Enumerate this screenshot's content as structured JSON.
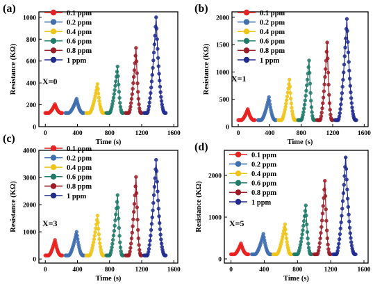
{
  "colors": {
    "0.1 ppm": "#e8221f",
    "0.2 ppm": "#3f6fb0",
    "0.4 ppm": "#f0c419",
    "0.6 ppm": "#1f7a6a",
    "0.8 ppm": "#9b1c27",
    "1 ppm": "#1f2b8f"
  },
  "chart_data": [
    {
      "panel": "(a)",
      "type": "line",
      "annotation": "X=0",
      "xlabel": "Time (s)",
      "ylabel": "Resistance (KΩ)",
      "xlim": [
        -80,
        1650
      ],
      "ylim": [
        0,
        1050
      ],
      "xticks": [
        0,
        400,
        800,
        1200,
        1600
      ],
      "yticks": [
        0,
        200,
        400,
        600,
        800,
        1000
      ],
      "legend": [
        "0.1 ppm",
        "0.2 ppm",
        "0.4 ppm",
        "0.6 ppm",
        "0.8 ppm",
        "1 ppm"
      ],
      "baseline": 125,
      "pulses": [
        {
          "name": "0.1 ppm",
          "start": 0,
          "rise": 120,
          "end": 200,
          "peak": 205
        },
        {
          "name": "0.2 ppm",
          "start": 250,
          "rise": 390,
          "end": 470,
          "peak": 255
        },
        {
          "name": "0.4 ppm",
          "start": 510,
          "rise": 650,
          "end": 720,
          "peak": 390
        },
        {
          "name": "0.6 ppm",
          "start": 760,
          "rise": 900,
          "end": 960,
          "peak": 550
        },
        {
          "name": "0.8 ppm",
          "start": 1000,
          "rise": 1130,
          "end": 1190,
          "peak": 720
        },
        {
          "name": "1 ppm",
          "start": 1230,
          "rise": 1380,
          "end": 1490,
          "peak": 1000
        }
      ]
    },
    {
      "panel": "(b)",
      "type": "line",
      "annotation": "X=1",
      "xlabel": "Time (s)",
      "ylabel": "Resistance (KΩ)",
      "xlim": [
        -80,
        1650
      ],
      "ylim": [
        0,
        2100
      ],
      "xticks": [
        0,
        400,
        800,
        1200,
        1600
      ],
      "yticks": [
        0,
        500,
        1000,
        1500,
        2000
      ],
      "legend": [
        "0.1 ppm",
        "0.2 ppm",
        "0.4 ppm",
        "0.6 ppm",
        "0.8 ppm",
        "1 ppm"
      ],
      "baseline": 120,
      "pulses": [
        {
          "name": "0.1 ppm",
          "start": 0,
          "rise": 120,
          "end": 200,
          "peak": 320
        },
        {
          "name": "0.2 ppm",
          "start": 250,
          "rise": 390,
          "end": 470,
          "peak": 540
        },
        {
          "name": "0.4 ppm",
          "start": 510,
          "rise": 650,
          "end": 720,
          "peak": 860
        },
        {
          "name": "0.6 ppm",
          "start": 760,
          "rise": 900,
          "end": 960,
          "peak": 1210
        },
        {
          "name": "0.8 ppm",
          "start": 1000,
          "rise": 1130,
          "end": 1190,
          "peak": 1540
        },
        {
          "name": "1 ppm",
          "start": 1230,
          "rise": 1380,
          "end": 1490,
          "peak": 1970
        }
      ]
    },
    {
      "panel": "(c)",
      "type": "line",
      "annotation": "X=3",
      "xlabel": "Time (s)",
      "ylabel": "Resistance (KΩ)",
      "xlim": [
        -80,
        1650
      ],
      "ylim": [
        -150,
        4000
      ],
      "xticks": [
        0,
        400,
        800,
        1200,
        1600
      ],
      "yticks": [
        0,
        1000,
        2000,
        3000,
        4000
      ],
      "legend": [
        "0.1 ppm",
        "0.2 ppm",
        "0.4 ppm",
        "0.6 ppm",
        "0.8 ppm",
        "1 ppm"
      ],
      "baseline": 130,
      "pulses": [
        {
          "name": "0.1 ppm",
          "start": 0,
          "rise": 120,
          "end": 200,
          "peak": 700
        },
        {
          "name": "0.2 ppm",
          "start": 250,
          "rise": 390,
          "end": 470,
          "peak": 1000
        },
        {
          "name": "0.4 ppm",
          "start": 510,
          "rise": 650,
          "end": 720,
          "peak": 1600
        },
        {
          "name": "0.6 ppm",
          "start": 760,
          "rise": 900,
          "end": 960,
          "peak": 2350
        },
        {
          "name": "0.8 ppm",
          "start": 1000,
          "rise": 1130,
          "end": 1190,
          "peak": 3020
        },
        {
          "name": "1 ppm",
          "start": 1230,
          "rise": 1380,
          "end": 1490,
          "peak": 3650
        }
      ]
    },
    {
      "panel": "(d)",
      "type": "line",
      "annotation": "X=5",
      "xlabel": "Time (s)",
      "ylabel": "Resistance (KΩ)",
      "xlim": [
        -80,
        1650
      ],
      "ylim": [
        -100,
        2600
      ],
      "xticks": [
        0,
        400,
        800,
        1200,
        1600
      ],
      "yticks": [
        0,
        1000,
        2000
      ],
      "legend": [
        "0.1 ppm",
        "0.2 ppm",
        "0.4 ppm",
        "0.6 ppm",
        "0.8 ppm",
        "1 ppm"
      ],
      "baseline": 110,
      "pulses": [
        {
          "name": "0.1 ppm",
          "start": 0,
          "rise": 120,
          "end": 200,
          "peak": 370
        },
        {
          "name": "0.2 ppm",
          "start": 250,
          "rise": 390,
          "end": 470,
          "peak": 600
        },
        {
          "name": "0.4 ppm",
          "start": 510,
          "rise": 650,
          "end": 720,
          "peak": 830
        },
        {
          "name": "0.6 ppm",
          "start": 760,
          "rise": 900,
          "end": 960,
          "peak": 1280
        },
        {
          "name": "0.8 ppm",
          "start": 1000,
          "rise": 1130,
          "end": 1190,
          "peak": 1870
        },
        {
          "name": "1 ppm",
          "start": 1230,
          "rise": 1380,
          "end": 1490,
          "peak": 2430
        }
      ]
    }
  ]
}
